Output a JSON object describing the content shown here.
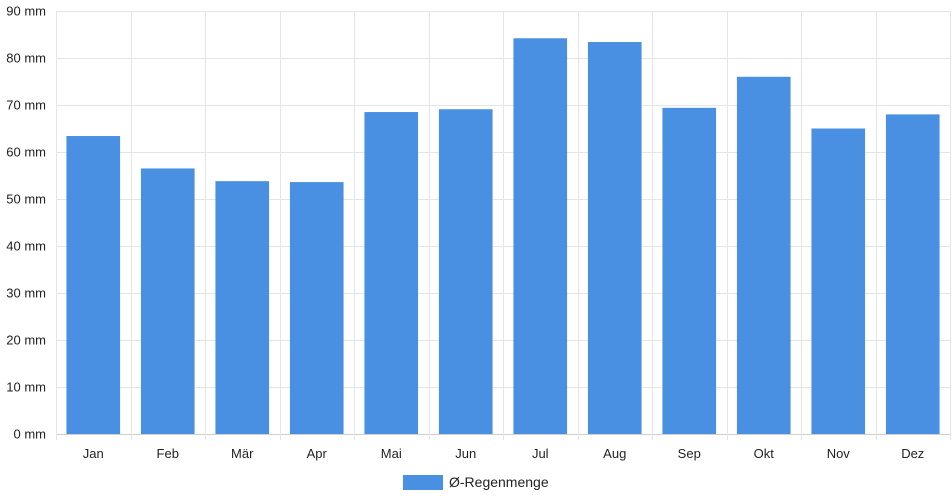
{
  "chart_data": {
    "type": "bar",
    "categories": [
      "Jan",
      "Feb",
      "Mär",
      "Apr",
      "Mai",
      "Jun",
      "Jul",
      "Aug",
      "Sep",
      "Okt",
      "Nov",
      "Dez"
    ],
    "series": [
      {
        "name": "Ø-Regenmenge",
        "values": [
          63.4,
          56.5,
          53.8,
          53.6,
          68.5,
          69.1,
          84.2,
          83.4,
          69.4,
          76.0,
          65.0,
          68.0
        ]
      }
    ],
    "y_unit": " mm",
    "ylim": [
      0,
      90
    ],
    "y_ticks": [
      0,
      10,
      20,
      30,
      40,
      50,
      60,
      70,
      80,
      90
    ],
    "grid": true,
    "legend_position": "bottom-center",
    "colors": {
      "bar": "#4a90e2",
      "grid": "#e5e5e5"
    }
  }
}
